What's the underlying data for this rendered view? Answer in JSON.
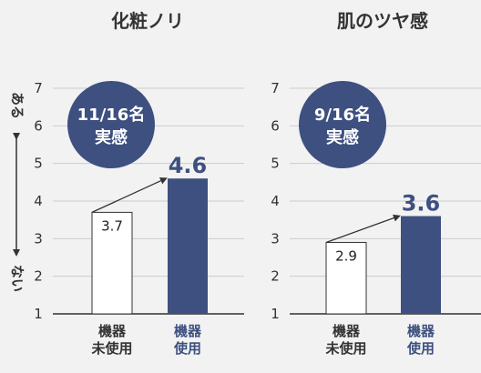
{
  "colors": {
    "accent": "#3d5080",
    "bar_before_fill": "#ffffff",
    "bar_before_stroke": "#333333",
    "grid": "#cccccc",
    "text": "#333333"
  },
  "scale_labels": {
    "top": "ある",
    "bottom": "ない"
  },
  "chart_data": [
    {
      "type": "bar",
      "title": "化粧ノリ",
      "categories": [
        [
          "機器",
          "未使用"
        ],
        [
          "機器",
          "使用"
        ]
      ],
      "values": [
        3.7,
        4.6
      ],
      "value_labels": [
        "3.7",
        "4.6"
      ],
      "ylim": [
        1,
        7
      ],
      "yticks": [
        1,
        2,
        3,
        4,
        5,
        6,
        7
      ],
      "badge": {
        "line1": "11/16名",
        "line2": "実感"
      }
    },
    {
      "type": "bar",
      "title": "肌のツヤ感",
      "categories": [
        [
          "機器",
          "未使用"
        ],
        [
          "機器",
          "使用"
        ]
      ],
      "values": [
        2.9,
        3.6
      ],
      "value_labels": [
        "2.9",
        "3.6"
      ],
      "ylim": [
        1,
        7
      ],
      "yticks": [
        1,
        2,
        3,
        4,
        5,
        6,
        7
      ],
      "badge": {
        "line1": "9/16名",
        "line2": "実感"
      }
    }
  ]
}
